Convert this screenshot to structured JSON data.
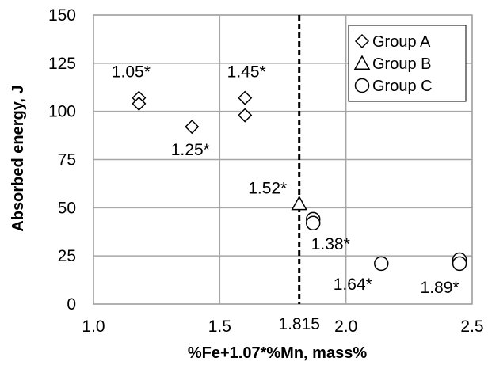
{
  "chart_data": {
    "type": "scatter",
    "title": "",
    "xlabel": "%Fe+1.07*%Mn, mass%",
    "ylabel": "Absorbed energy, J",
    "xlim": [
      1.0,
      2.5
    ],
    "ylim": [
      0,
      150
    ],
    "x_ticks": [
      "1.0",
      "1.5",
      "2.0",
      "2.5"
    ],
    "x_tick_values": [
      1.0,
      1.5,
      2.0,
      2.5
    ],
    "y_ticks": [
      "0",
      "25",
      "50",
      "75",
      "100",
      "125",
      "150"
    ],
    "y_tick_values": [
      0,
      25,
      50,
      75,
      100,
      125,
      150
    ],
    "grid": true,
    "legend_position": "top-right",
    "series": [
      {
        "name": "Group A",
        "marker": "diamond",
        "points": [
          {
            "x": 1.18,
            "y": 107
          },
          {
            "x": 1.18,
            "y": 104
          },
          {
            "x": 1.39,
            "y": 92
          },
          {
            "x": 1.6,
            "y": 107
          },
          {
            "x": 1.6,
            "y": 98
          }
        ]
      },
      {
        "name": "Group B",
        "marker": "triangle",
        "points": [
          {
            "x": 1.815,
            "y": 52
          }
        ]
      },
      {
        "name": "Group C",
        "marker": "circle",
        "points": [
          {
            "x": 1.87,
            "y": 44
          },
          {
            "x": 1.87,
            "y": 42
          },
          {
            "x": 2.14,
            "y": 21
          },
          {
            "x": 2.45,
            "y": 23
          },
          {
            "x": 2.45,
            "y": 21
          }
        ]
      }
    ],
    "reference_line": {
      "x": 1.815,
      "label": "1.815",
      "style": "dashed"
    },
    "annotations": [
      {
        "text": "1.05*",
        "x": 1.18,
        "y": 107
      },
      {
        "text": "1.25*",
        "x": 1.39,
        "y": 92
      },
      {
        "text": "1.45*",
        "x": 1.6,
        "y": 107
      },
      {
        "text": "1.52*",
        "x": 1.815,
        "y": 52
      },
      {
        "text": "1.38*",
        "x": 1.87,
        "y": 42
      },
      {
        "text": "1.64*",
        "x": 2.14,
        "y": 21
      },
      {
        "text": "1.89*",
        "x": 2.45,
        "y": 21
      }
    ]
  }
}
